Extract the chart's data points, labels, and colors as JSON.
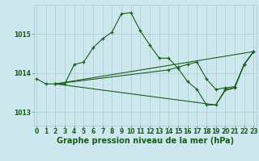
{
  "background_color": "#cce8ee",
  "grid_color": "#aacccc",
  "line_color": "#1a5c1a",
  "xlabel": "Graphe pression niveau de la mer (hPa)",
  "xlabel_fontsize": 7,
  "ylabel_values": [
    1013,
    1014,
    1015
  ],
  "xlim": [
    -0.3,
    23.3
  ],
  "ylim": [
    1012.65,
    1015.75
  ],
  "xticks": [
    0,
    1,
    2,
    3,
    4,
    5,
    6,
    7,
    8,
    9,
    10,
    11,
    12,
    13,
    14,
    15,
    16,
    17,
    18,
    19,
    20,
    21,
    22,
    23
  ],
  "series": [
    {
      "x": [
        0,
        1,
        2,
        3,
        4,
        5,
        6,
        7,
        8,
        9,
        10,
        11,
        12,
        13,
        14,
        15,
        16,
        17,
        18,
        19,
        20,
        21,
        22,
        23
      ],
      "y": [
        1013.85,
        1013.72,
        1013.72,
        1013.72,
        1014.22,
        1014.28,
        1014.65,
        1014.88,
        1015.05,
        1015.52,
        1015.55,
        1015.08,
        1014.72,
        1014.38,
        1014.38,
        1014.12,
        1013.78,
        1013.58,
        1013.18,
        1013.18,
        1013.58,
        1013.62,
        1014.22,
        1014.55
      ],
      "marker": true
    },
    {
      "x": [
        2,
        23
      ],
      "y": [
        1013.72,
        1014.55
      ],
      "marker": false
    },
    {
      "x": [
        2,
        14,
        15,
        16,
        17,
        18,
        19,
        20,
        21,
        22,
        23
      ],
      "y": [
        1013.72,
        1014.08,
        1014.15,
        1014.22,
        1014.28,
        1013.85,
        1013.58,
        1013.62,
        1013.65,
        1014.22,
        1014.55
      ],
      "marker": true
    },
    {
      "x": [
        2,
        19,
        20,
        21,
        22,
        23
      ],
      "y": [
        1013.72,
        1013.18,
        1013.55,
        1013.62,
        1014.22,
        1014.55
      ],
      "marker": false
    }
  ],
  "tick_fontsize": 5.5,
  "tick_color": "#1a5c1a"
}
